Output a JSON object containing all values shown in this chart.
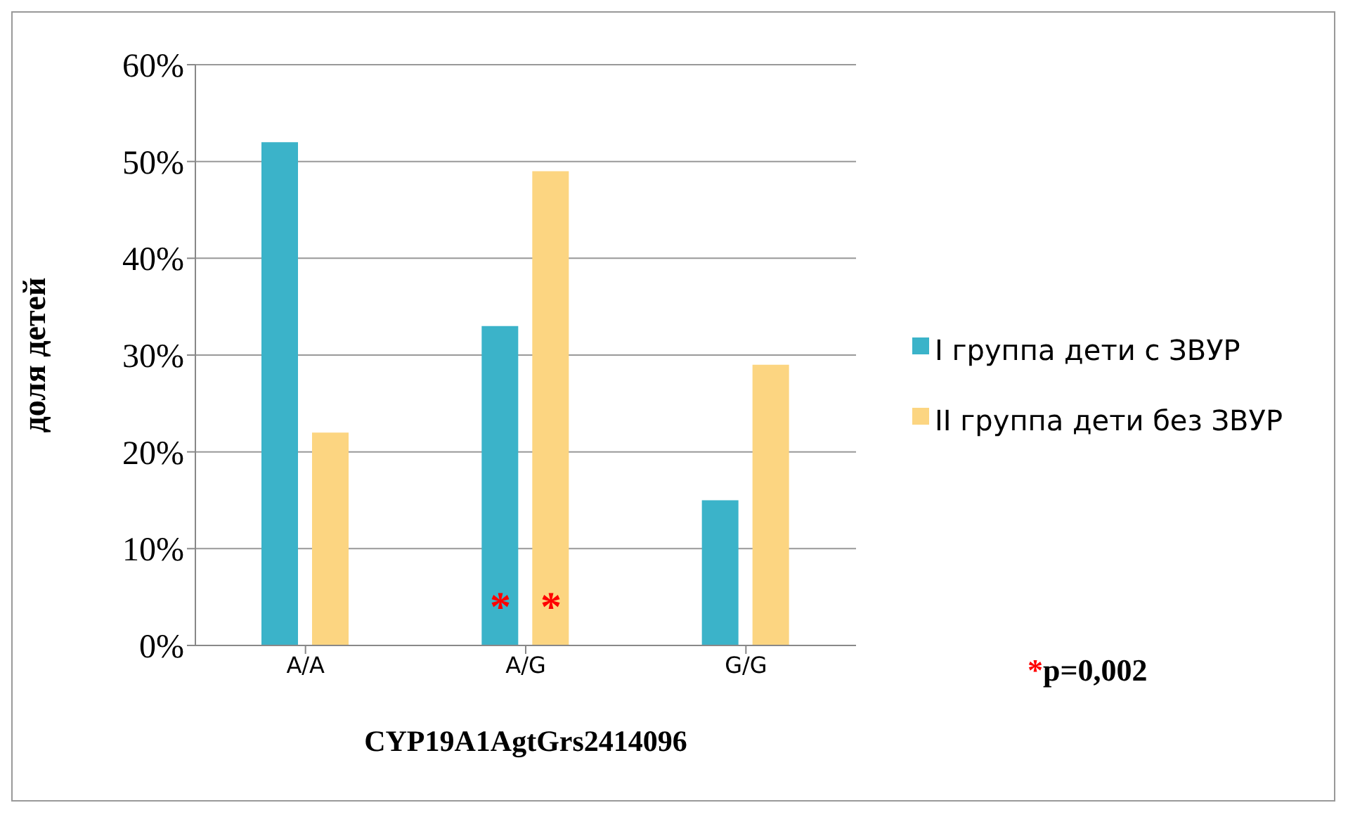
{
  "chart_data": {
    "type": "bar",
    "xlabel": "CYP19A1AgtGrs2414096",
    "ylabel": "доля детей",
    "categories": [
      "A/A",
      "A/G",
      "G/G"
    ],
    "series": [
      {
        "name": "I группа дети с ЗВУР",
        "color": "#3bb3c9",
        "values": [
          52,
          33,
          15
        ]
      },
      {
        "name": "II группа дети без ЗВУР",
        "color": "#fcd581",
        "values": [
          22,
          49,
          29
        ]
      }
    ],
    "ylim": [
      0,
      60
    ],
    "yticks": [
      {
        "value": 0,
        "label": "0%"
      },
      {
        "value": 10,
        "label": "10%"
      },
      {
        "value": 20,
        "label": "20%"
      },
      {
        "value": 30,
        "label": "30%"
      },
      {
        "value": 40,
        "label": "40%"
      },
      {
        "value": 50,
        "label": "50%"
      },
      {
        "value": 60,
        "label": "60%"
      }
    ],
    "grid": "y",
    "legend": "right",
    "annotations": [
      {
        "text": "*",
        "x": "A/G",
        "y": 4
      },
      {
        "text": "*",
        "x": "A/G",
        "y": 4
      },
      "*p=0,002"
    ]
  }
}
